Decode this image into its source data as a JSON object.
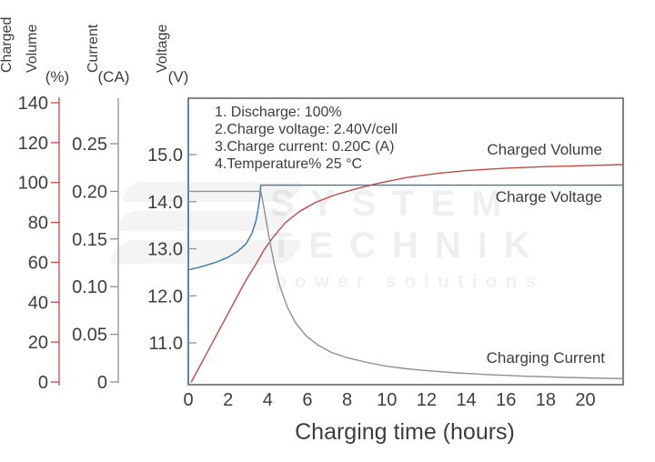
{
  "axis_titles": {
    "volume_1": "Charged",
    "volume_2": "Volume",
    "volume_unit": "(%)",
    "current": "Current",
    "current_unit": "(CA)",
    "voltage": "Voltage",
    "voltage_unit": "(V)"
  },
  "watermark": {
    "line1": "SYSTEM",
    "line2": "TECHNIK",
    "line3": "power solutions"
  },
  "colors": {
    "volume_red": "#bf4a45",
    "voltage_blue": "#3c79a3",
    "current_gray": "#8f8f8f",
    "box_border": "#4f4f4f",
    "text": "#3d3d3d"
  },
  "chart_data": {
    "type": "line",
    "xlabel": "Charging time (hours)",
    "annotations": [
      "1. Discharge: 100%",
      "2.Charge voltage: 2.40V/cell",
      "3.Charge current: 0.20C (A)",
      "4.Temperature% 25 °C"
    ],
    "axes": {
      "x": {
        "label": "Charging time (hours)",
        "range": [
          0,
          21.9
        ],
        "tick_labels": [
          "0",
          "2",
          "4",
          "6",
          "8",
          "10",
          "12",
          "14",
          "16",
          "18",
          "20"
        ]
      },
      "charged_volume": {
        "label": "Charged Volume (%)",
        "range": [
          0,
          140
        ],
        "tick_labels": [
          "0",
          "20",
          "40",
          "60",
          "80",
          "100",
          "120",
          "140"
        ],
        "color": "#bf4a45"
      },
      "current": {
        "label": "Current (CA)",
        "range": [
          0,
          0.25
        ],
        "tick_labels": [
          "0",
          "0.05",
          "0.10",
          "0.15",
          "0.20",
          "0.25"
        ],
        "color": "#8f8f8f"
      },
      "voltage": {
        "label": "Voltage (V)",
        "range": [
          11.0,
          15.0
        ],
        "tick_labels": [
          "11.0",
          "12.0",
          "13.0",
          "14.0",
          "15.0"
        ],
        "color": "#3c79a3"
      }
    },
    "series": [
      {
        "name": "Charged Volume",
        "axis": "charged_volume",
        "color": "#bf4a45",
        "x": [
          0.15,
          0.8,
          1.5,
          2.2,
          2.9,
          3.4,
          3.8,
          4.3,
          4.9,
          5.6,
          6.4,
          7.3,
          8.3,
          9.5,
          11,
          12.5,
          14,
          16,
          18,
          20,
          21.9
        ],
        "y": [
          0,
          12,
          25,
          38,
          51,
          59,
          66,
          73,
          80,
          85.5,
          90,
          93.5,
          96.5,
          99.5,
          102.5,
          104.5,
          106,
          107.2,
          108,
          108.5,
          109
        ]
      },
      {
        "name": "Charge Voltage",
        "axis": "voltage",
        "color": "#3c79a3",
        "x": [
          0,
          0.5,
          1,
          1.5,
          2,
          2.5,
          2.9,
          3.2,
          3.4,
          3.52,
          3.6,
          3.65,
          21.9
        ],
        "y": [
          12.55,
          12.6,
          12.66,
          12.73,
          12.82,
          12.95,
          13.1,
          13.32,
          13.58,
          13.85,
          14.1,
          14.35,
          14.35
        ]
      },
      {
        "name": "Charging Current",
        "axis": "current",
        "color": "#8f8f8f",
        "x": [
          0,
          3.65,
          3.75,
          3.9,
          4.1,
          4.35,
          4.65,
          5.0,
          5.4,
          5.9,
          6.5,
          7.2,
          8,
          9,
          10,
          11,
          12,
          13.5,
          15,
          17,
          19,
          21,
          21.9
        ],
        "y": [
          0.2,
          0.2,
          0.19,
          0.172,
          0.148,
          0.122,
          0.098,
          0.078,
          0.062,
          0.049,
          0.039,
          0.031,
          0.0255,
          0.0205,
          0.0165,
          0.0138,
          0.0118,
          0.0095,
          0.0078,
          0.006,
          0.0048,
          0.0038,
          0.0035
        ]
      }
    ]
  }
}
